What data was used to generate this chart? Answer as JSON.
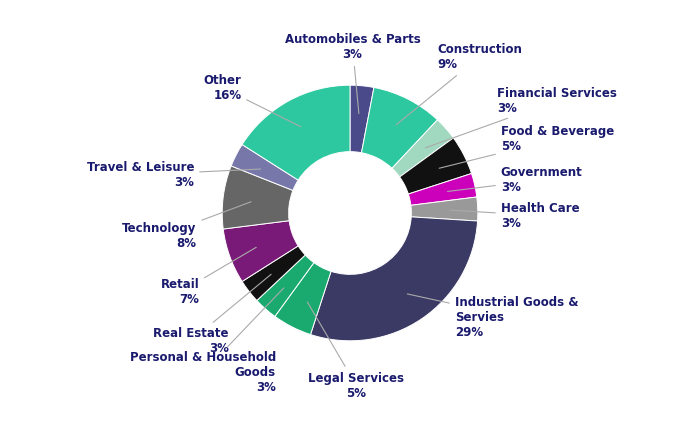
{
  "sectors": [
    "Automobiles & Parts",
    "Construction",
    "Financial Services",
    "Food & Beverage",
    "Government",
    "Health Care",
    "Industrial Goods &\nServies",
    "Legal Services",
    "Personal & Household\nGoods",
    "Real Estate",
    "Retail",
    "Technology",
    "Travel & Leisure",
    "Other"
  ],
  "percentages": [
    3,
    9,
    3,
    5,
    3,
    3,
    29,
    5,
    3,
    3,
    7,
    8,
    3,
    16
  ],
  "colors": [
    "#4a4a8a",
    "#2dc8a0",
    "#a0d8c0",
    "#111111",
    "#cc00bb",
    "#999999",
    "#3a3a65",
    "#1aaa70",
    "#1aaa70",
    "#111111",
    "#7a1a78",
    "#666666",
    "#7777aa",
    "#2dc8a0"
  ],
  "display_labels": [
    "Automobiles & Parts\n3%",
    "Construction\n9%",
    "Financial Services\n3%",
    "Food & Beverage\n5%",
    "Government\n3%",
    "Health Care\n3%",
    "Industrial Goods &\nServies\n29%",
    "Legal Services\n5%",
    "Personal & Household\nGoods\n3%",
    "Real Estate\n3%",
    "Retail\n7%",
    "Technology\n8%",
    "Travel & Leisure\n3%",
    "Other\n16%"
  ],
  "background_color": "#ffffff",
  "font_color": "#1a1a6e",
  "font_size": 8.5
}
